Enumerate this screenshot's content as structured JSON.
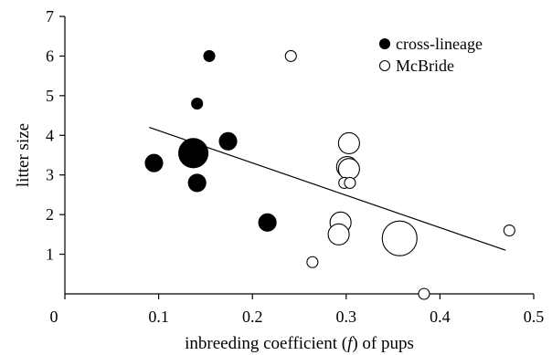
{
  "chart_data": {
    "type": "scatter",
    "xlabel": {
      "before": "inbreeding coefficient (",
      "italic": "f",
      "after": ") of pups"
    },
    "ylabel": "litter size",
    "xlim": [
      0,
      0.5
    ],
    "ylim": [
      0,
      7
    ],
    "x_ticks": [
      "0",
      "0.1",
      "0.2",
      "0.3",
      "0.4",
      "0.5"
    ],
    "y_ticks": [
      "1",
      "2",
      "3",
      "4",
      "5",
      "6",
      "7"
    ],
    "grid": false,
    "legend_position": "top-right",
    "series": [
      {
        "name": "cross-lineage",
        "fill": "#000000",
        "points": [
          {
            "x": 0.154,
            "y": 6.0,
            "size": 1
          },
          {
            "x": 0.141,
            "y": 4.8,
            "size": 1
          },
          {
            "x": 0.174,
            "y": 3.85,
            "size": 2
          },
          {
            "x": 0.095,
            "y": 3.3,
            "size": 2
          },
          {
            "x": 0.137,
            "y": 3.55,
            "size": 4
          },
          {
            "x": 0.141,
            "y": 2.8,
            "size": 2
          },
          {
            "x": 0.216,
            "y": 1.8,
            "size": 2
          }
        ]
      },
      {
        "name": "McBride",
        "fill": "#ffffff",
        "points": [
          {
            "x": 0.241,
            "y": 6.0,
            "size": 1
          },
          {
            "x": 0.303,
            "y": 3.8,
            "size": 3
          },
          {
            "x": 0.301,
            "y": 3.2,
            "size": 3
          },
          {
            "x": 0.303,
            "y": 3.15,
            "size": 3
          },
          {
            "x": 0.298,
            "y": 2.8,
            "size": 1
          },
          {
            "x": 0.304,
            "y": 2.8,
            "size": 1
          },
          {
            "x": 0.294,
            "y": 1.8,
            "size": 3
          },
          {
            "x": 0.292,
            "y": 1.5,
            "size": 3
          },
          {
            "x": 0.264,
            "y": 0.8,
            "size": 1
          },
          {
            "x": 0.357,
            "y": 1.4,
            "size": 5
          },
          {
            "x": 0.474,
            "y": 1.6,
            "size": 1
          },
          {
            "x": 0.383,
            "y": 0.0,
            "size": 1
          }
        ]
      }
    ],
    "trendline": {
      "x": [
        0.09,
        0.47
      ],
      "y": [
        4.2,
        1.1
      ]
    }
  }
}
